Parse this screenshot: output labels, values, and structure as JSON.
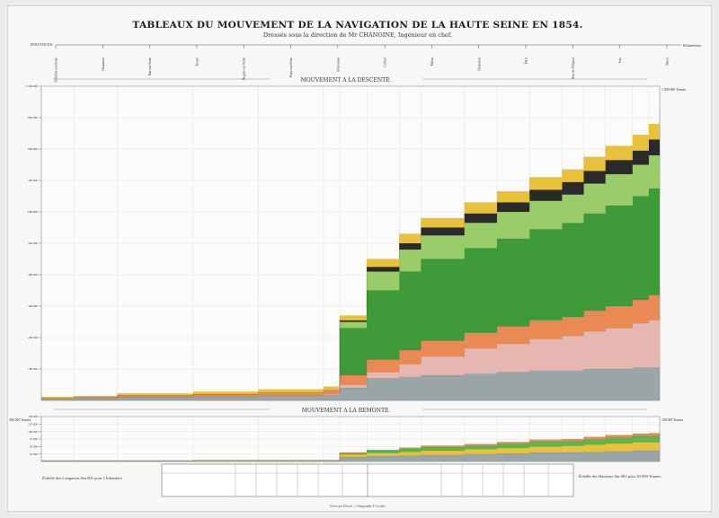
{
  "page": {
    "title": "TABLEAUX DU MOUVEMENT DE LA NAVIGATION DE LA HAUTE SEINE EN 1854.",
    "subtitle": "Dressés sous la direction de Mr CHANOINE, Ingénieur en chef.",
    "distances_label": "DISTANCES",
    "km_label": "Kilomètres",
    "descent_banner": "MOUVEMENT A LA DESCENTE.",
    "ascent_banner": "MOUVEMENT A LA REMONTE.",
    "scale_lengths": "Échelle des Longueurs 0m 001 pour 1 kilomètre.",
    "scale_heights": "Échelle des Hauteurs 0m 001 pour 20 000 Tonnes.",
    "imprint": "Gravé par Erhard – Lithographie F. Leclerc",
    "left_bottom_tick": "300 000 Tonnes.",
    "right_top_tick": "1 000 000 Tonnes.",
    "right_bottom_tick": "100 000 Tonnes."
  },
  "colors": {
    "paper": "#f7f8f5",
    "frame": "#444444",
    "green_dark": "#3f9a3a",
    "green_mid": "#5fb548",
    "green_light": "#9acd6a",
    "green_pale": "#b7d98a",
    "orange": "#e98a55",
    "yellow": "#e8c23a",
    "black": "#2a2a2a",
    "gray": "#9aa5a8",
    "pink": "#e6b7b0"
  },
  "chart_data": {
    "type": "area",
    "note_units": "tonnes",
    "towns": [
      "Châtillon-sur-Seine",
      "Chaumont",
      "Bar-sur-Seine",
      "Troyes",
      "Nogent-sur-Seine",
      "Bray-sur-Seine",
      "Montereau",
      "Corbeil",
      "Melun",
      "Charenton",
      "Paris",
      "Port de l'Hôpital",
      "Ivry",
      "Bercy"
    ],
    "descent": {
      "ylim": [
        0,
        1000000
      ],
      "y_ticks": [
        100000,
        200000,
        300000,
        400000,
        500000,
        600000,
        700000,
        800000,
        900000,
        1000000
      ],
      "x": [
        0,
        30,
        70,
        140,
        200,
        260,
        275,
        300,
        330,
        350,
        390,
        420,
        450,
        480,
        500,
        520,
        545,
        560,
        570
      ],
      "series": [
        {
          "color_key": "gray",
          "values": [
            5000,
            6000,
            10000,
            12000,
            15000,
            18000,
            40000,
            70000,
            75000,
            80000,
            85000,
            90000,
            95000,
            95000,
            100000,
            100000,
            105000,
            105000,
            110000
          ]
        },
        {
          "color_key": "pink",
          "values": [
            0,
            0,
            0,
            0,
            0,
            2000,
            10000,
            20000,
            40000,
            60000,
            80000,
            90000,
            100000,
            110000,
            120000,
            130000,
            140000,
            150000,
            160000
          ]
        },
        {
          "color_key": "orange",
          "values": [
            3000,
            4000,
            6000,
            8000,
            10000,
            12000,
            30000,
            40000,
            45000,
            50000,
            50000,
            55000,
            60000,
            60000,
            65000,
            70000,
            75000,
            80000,
            85000
          ]
        },
        {
          "color_key": "green_dark",
          "values": [
            0,
            0,
            0,
            0,
            0,
            0,
            150000,
            220000,
            250000,
            260000,
            270000,
            280000,
            290000,
            300000,
            310000,
            320000,
            330000,
            340000,
            350000
          ]
        },
        {
          "color_key": "green_light",
          "values": [
            0,
            0,
            0,
            0,
            0,
            0,
            20000,
            60000,
            70000,
            75000,
            80000,
            85000,
            90000,
            90000,
            95000,
            100000,
            100000,
            105000,
            110000
          ]
        },
        {
          "color_key": "black",
          "values": [
            0,
            0,
            0,
            0,
            0,
            0,
            5000,
            15000,
            20000,
            25000,
            30000,
            30000,
            35000,
            40000,
            40000,
            45000,
            45000,
            50000,
            55000
          ]
        },
        {
          "color_key": "yellow",
          "values": [
            3000,
            4000,
            6000,
            8000,
            10000,
            12000,
            15000,
            25000,
            30000,
            30000,
            35000,
            35000,
            40000,
            40000,
            45000,
            45000,
            50000,
            50000,
            55000
          ]
        }
      ]
    },
    "ascent": {
      "ylim": [
        0,
        150000
      ],
      "y_ticks": [
        25000,
        50000,
        75000,
        100000,
        125000,
        150000
      ],
      "x": [
        0,
        30,
        70,
        140,
        200,
        260,
        275,
        300,
        330,
        350,
        390,
        420,
        450,
        480,
        500,
        520,
        545,
        560,
        570
      ],
      "series": [
        {
          "color_key": "gray",
          "values": [
            2000,
            2000,
            2000,
            3000,
            3000,
            3000,
            15000,
            18000,
            20000,
            22000,
            25000,
            27000,
            30000,
            30000,
            32000,
            34000,
            36000,
            36000,
            38000
          ]
        },
        {
          "color_key": "yellow",
          "values": [
            1000,
            1000,
            1000,
            1000,
            1000,
            1000,
            8000,
            10000,
            12000,
            14000,
            16000,
            18000,
            20000,
            22000,
            24000,
            26000,
            28000,
            28000,
            30000
          ]
        },
        {
          "color_key": "green_mid",
          "values": [
            0,
            0,
            0,
            0,
            0,
            0,
            5000,
            8000,
            10000,
            12000,
            12000,
            14000,
            16000,
            16000,
            18000,
            20000,
            20000,
            22000,
            22000
          ]
        },
        {
          "color_key": "orange",
          "values": [
            0,
            0,
            0,
            0,
            0,
            0,
            2000,
            3000,
            4000,
            5000,
            5000,
            6000,
            7000,
            7000,
            8000,
            8000,
            9000,
            9000,
            10000
          ]
        }
      ]
    }
  }
}
